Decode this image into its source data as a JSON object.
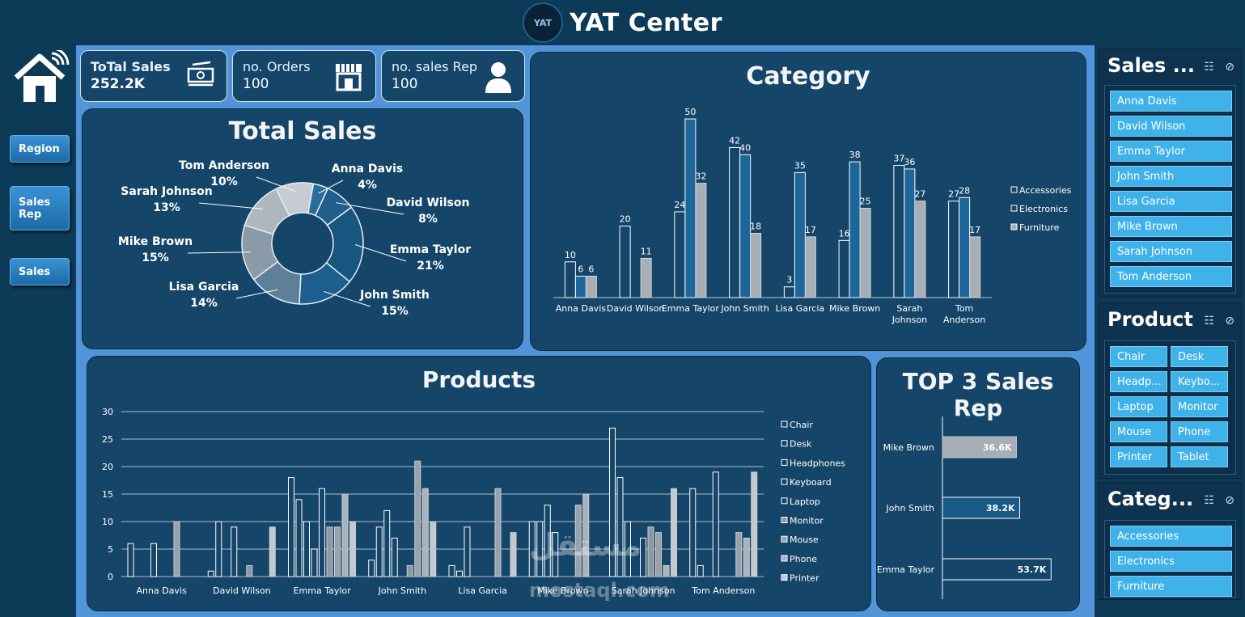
{
  "header": {
    "title": "YAT Center",
    "logo_text": "YAT"
  },
  "nav": {
    "region": "Region",
    "sales_rep": "Sales Rep",
    "sales": "Sales"
  },
  "kpis": {
    "total_sales": {
      "label": "ToTal Sales",
      "value": "252.2K"
    },
    "orders": {
      "label": "no. Orders",
      "value": "100"
    },
    "reps": {
      "label": "no. sales Rep",
      "value": "100"
    }
  },
  "colors": {
    "accent": "#3fb2ea",
    "panel": "#15466a",
    "main_bg": "#5194d8",
    "accessories": "#1a5a86",
    "electronics": "#1d6699",
    "furniture": "#a8aeb6"
  },
  "slicers": {
    "sales_rep": {
      "title": "Sales ...",
      "items": [
        "Anna Davis",
        "David Wilson",
        "Emma Taylor",
        "John Smith",
        "Lisa Garcia",
        "Mike Brown",
        "Sarah Johnson",
        "Tom Anderson"
      ]
    },
    "product": {
      "title": "Product",
      "items": [
        "Chair",
        "Desk",
        "Headp...",
        "Keybo...",
        "Laptop",
        "Monitor",
        "Mouse",
        "Phone",
        "Printer",
        "Tablet"
      ]
    },
    "category": {
      "title": "Categ...",
      "items": [
        "Accessories",
        "Electronics",
        "Furniture"
      ]
    }
  },
  "watermark": {
    "arabic": "مستقل",
    "latin": "mostaql.com"
  },
  "chart_data": [
    {
      "id": "total_sales",
      "type": "pie",
      "title": "Total Sales",
      "slices": [
        {
          "name": "Anna Davis",
          "pct": "4%",
          "value": 4
        },
        {
          "name": "David Wilson",
          "pct": "8%",
          "value": 8
        },
        {
          "name": "Emma Taylor",
          "pct": "21%",
          "value": 21
        },
        {
          "name": "John Smith",
          "pct": "15%",
          "value": 15
        },
        {
          "name": "Lisa Garcia",
          "pct": "14%",
          "value": 14
        },
        {
          "name": "Mike Brown",
          "pct": "15%",
          "value": 15
        },
        {
          "name": "Sarah Johnson",
          "pct": "13%",
          "value": 13
        },
        {
          "name": "Tom Anderson",
          "pct": "10%",
          "value": 10
        }
      ]
    },
    {
      "id": "category",
      "type": "bar",
      "title": "Category",
      "categories": [
        "Anna Davis",
        "David Wilson",
        "Emma Taylor",
        "John Smith",
        "Lisa Garcia",
        "Mike Brown",
        "Sarah Johnson",
        "Tom Anderson"
      ],
      "series": [
        {
          "name": "Accessories",
          "values": [
            10,
            20,
            24,
            42,
            3,
            16,
            37,
            27
          ]
        },
        {
          "name": "Electronics",
          "values": [
            6,
            null,
            50,
            40,
            35,
            38,
            36,
            28
          ]
        },
        {
          "name": "Furniture",
          "values": [
            6,
            11,
            32,
            18,
            17,
            25,
            27,
            17
          ]
        }
      ],
      "ylim": [
        0,
        55
      ]
    },
    {
      "id": "products",
      "type": "bar",
      "title": "Products",
      "categories": [
        "Anna Davis",
        "David Wilson",
        "Emma Taylor",
        "John Smith",
        "Lisa Garcia",
        "Mike Brown",
        "Sarah Johnson",
        "Tom Anderson"
      ],
      "yticks": [
        "30",
        "25",
        "20",
        "15",
        "10",
        "5",
        "0"
      ],
      "ylim": [
        0,
        30
      ],
      "series": [
        {
          "name": "Chair",
          "values": [
            6,
            1,
            18,
            3,
            2,
            10,
            27,
            16
          ]
        },
        {
          "name": "Desk",
          "values": [
            0,
            10,
            14,
            9,
            1,
            10,
            18,
            2
          ]
        },
        {
          "name": "Headphones",
          "values": [
            0,
            0,
            10,
            12,
            9,
            13,
            10,
            0
          ]
        },
        {
          "name": "Keyboard",
          "values": [
            6,
            9,
            5,
            7,
            0,
            8,
            0,
            19
          ]
        },
        {
          "name": "Laptop",
          "values": [
            0,
            0,
            16,
            0,
            0,
            0,
            7,
            0
          ]
        },
        {
          "name": "Monitor",
          "values": [
            0,
            2,
            9,
            2,
            0,
            0,
            9,
            0
          ]
        },
        {
          "name": "Mouse",
          "values": [
            10,
            0,
            9,
            21,
            16,
            13,
            8,
            8
          ]
        },
        {
          "name": "Phone",
          "values": [
            0,
            0,
            15,
            16,
            0,
            15,
            2,
            7
          ]
        },
        {
          "name": "Printer",
          "values": [
            0,
            9,
            10,
            10,
            8,
            0,
            16,
            19
          ]
        }
      ]
    },
    {
      "id": "top3",
      "type": "bar",
      "title": "TOP 3 Sales Rep",
      "categories": [
        "Mike Brown",
        "John Smith",
        "Emma Taylor"
      ],
      "values": [
        36.6,
        38.2,
        53.7
      ],
      "labels": [
        "36.6K",
        "38.2K",
        "53.7K"
      ]
    }
  ]
}
